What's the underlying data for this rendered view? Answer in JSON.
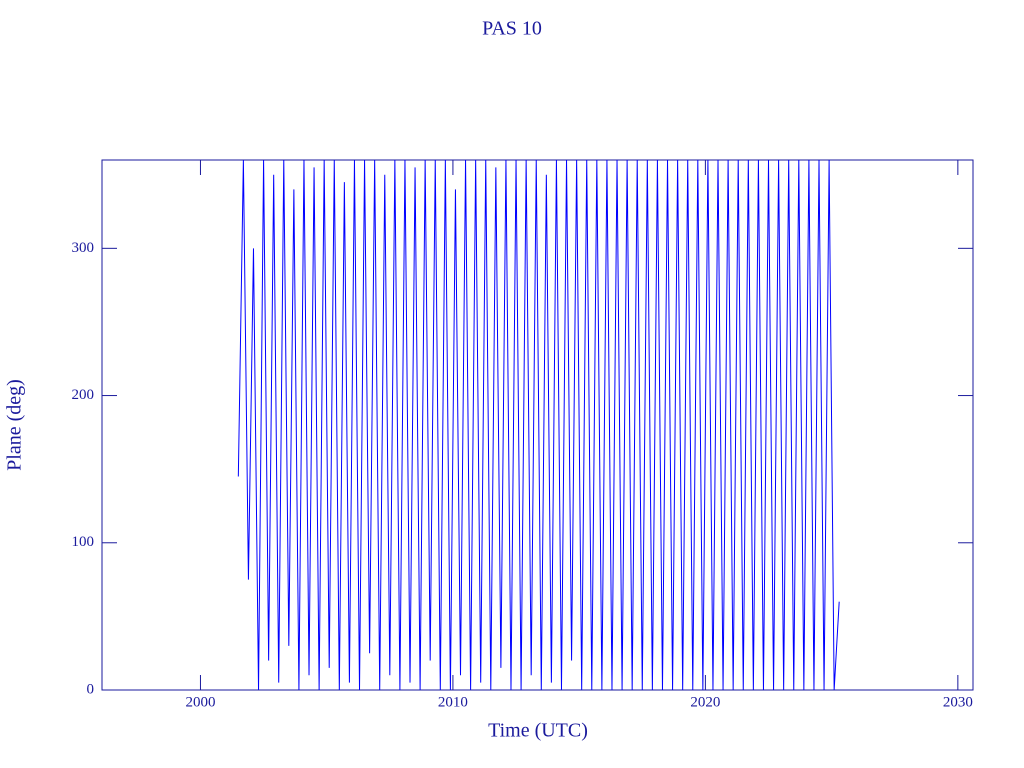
{
  "chart_data": {
    "type": "line",
    "title": "PAS 10",
    "xlabel": "Time (UTC)",
    "ylabel": "Plane (deg)",
    "xlim": [
      1996.1,
      2030.6
    ],
    "ylim": [
      0,
      360
    ],
    "xticks": [
      2000,
      2010,
      2020,
      2030
    ],
    "yticks": [
      0,
      100,
      200,
      300
    ],
    "series": [
      {
        "color": "#0000ff",
        "x": [
          2001.5,
          2001.7,
          2001.9,
          2002.1,
          2002.3,
          2002.5,
          2002.7,
          2002.9,
          2003.1,
          2003.3,
          2003.5,
          2003.7,
          2003.9,
          2004.1,
          2004.3,
          2004.5,
          2004.7,
          2004.9,
          2005.1,
          2005.3,
          2005.5,
          2005.7,
          2005.9,
          2006.1,
          2006.3,
          2006.5,
          2006.7,
          2006.9,
          2007.1,
          2007.3,
          2007.5,
          2007.7,
          2007.9,
          2008.1,
          2008.3,
          2008.5,
          2008.7,
          2008.9,
          2009.1,
          2009.3,
          2009.5,
          2009.7,
          2009.9,
          2010.1,
          2010.3,
          2010.5,
          2010.7,
          2010.9,
          2011.1,
          2011.3,
          2011.5,
          2011.7,
          2011.9,
          2012.1,
          2012.3,
          2012.5,
          2012.7,
          2012.9,
          2013.1,
          2013.3,
          2013.5,
          2013.7,
          2013.9,
          2014.1,
          2014.3,
          2014.5,
          2014.7,
          2014.9,
          2015.1,
          2015.3,
          2015.5,
          2015.7,
          2015.9,
          2016.1,
          2016.3,
          2016.5,
          2016.7,
          2016.9,
          2017.1,
          2017.3,
          2017.5,
          2017.7,
          2017.9,
          2018.1,
          2018.3,
          2018.5,
          2018.7,
          2018.9,
          2019.1,
          2019.3,
          2019.5,
          2019.7,
          2019.9,
          2020.1,
          2020.3,
          2020.5,
          2020.7,
          2020.9,
          2021.1,
          2021.3,
          2021.5,
          2021.7,
          2021.9,
          2022.1,
          2022.3,
          2022.5,
          2022.7,
          2022.9,
          2023.1,
          2023.3,
          2023.5,
          2023.7,
          2023.9,
          2024.1,
          2024.3,
          2024.5,
          2024.7,
          2024.9,
          2025.1,
          2025.3
        ],
        "values": [
          145,
          360,
          75,
          300,
          0,
          360,
          20,
          350,
          5,
          360,
          30,
          340,
          0,
          360,
          10,
          355,
          0,
          360,
          15,
          360,
          0,
          345,
          5,
          360,
          0,
          360,
          25,
          360,
          0,
          350,
          10,
          360,
          0,
          360,
          5,
          355,
          0,
          360,
          20,
          360,
          0,
          360,
          0,
          340,
          10,
          360,
          0,
          360,
          5,
          360,
          0,
          355,
          15,
          360,
          0,
          360,
          0,
          360,
          10,
          360,
          0,
          350,
          5,
          360,
          0,
          360,
          20,
          360,
          0,
          360,
          0,
          360,
          0,
          360,
          0,
          360,
          0,
          360,
          0,
          360,
          0,
          360,
          0,
          360,
          0,
          360,
          0,
          360,
          0,
          360,
          0,
          360,
          0,
          360,
          0,
          360,
          0,
          360,
          0,
          360,
          0,
          360,
          0,
          360,
          0,
          360,
          0,
          360,
          0,
          360,
          0,
          360,
          0,
          360,
          0,
          360,
          0,
          360,
          0,
          60
        ]
      }
    ]
  }
}
